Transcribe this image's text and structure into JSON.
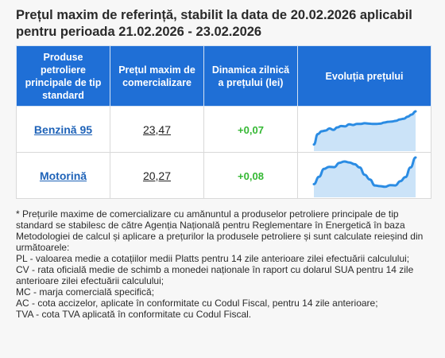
{
  "title": "Prețul maxim de referință, stabilit la data de 20.02.2026 aplicabil pentru perioada 21.02.2026 - 23.02.2026",
  "table": {
    "headers": [
      "Produse petroliere principale de tip standard",
      "Prețul maxim de comercializare",
      "Dinamica zilnică a prețului (lei)",
      "Evoluția prețului"
    ],
    "rows": [
      {
        "product": "Benzină 95",
        "price": "23,47",
        "dynamic": "+0,07",
        "trend": [
          1,
          4,
          4.8,
          5,
          5.6,
          5.2,
          5.9,
          6.3,
          6.2,
          6.8,
          6.6,
          6.9,
          6.9,
          7.1,
          7,
          6.9,
          6.9,
          7,
          7.3,
          7.5,
          7.6,
          7.8,
          8.2,
          8.4,
          9,
          9.6,
          10.5
        ]
      },
      {
        "product": "Motorină",
        "price": "20,27",
        "dynamic": "+0,08",
        "trend": [
          3,
          5.2,
          7.6,
          8.2,
          8.1,
          9.4,
          9.8,
          9.5,
          9,
          8,
          5.8,
          4.4,
          2.6,
          2.4,
          2.2,
          2.7,
          2.6,
          3.9,
          5.1,
          8,
          11
        ]
      }
    ]
  },
  "colors": {
    "header_bg": "#1f6fd6",
    "product_link": "#1f63b8",
    "dynamic_up": "#35b834",
    "spark_line": "#2b8ce3",
    "spark_fill": "#b9d9f5"
  },
  "notes": [
    "* Prețurile maxime de comercializare cu amănuntul a produselor petroliere principale de tip standard se stabilesc de către Agenția Națională pentru Reglementare în Energetică în baza Metodologiei de calcul și aplicare a prețurilor la produsele petroliere și sunt calculate reieșind din următoarele:",
    "PL - valoarea medie a cotațiilor medii Platts pentru 14 zile anterioare zilei efectuării calculului;",
    "CV - rata oficială medie de schimb a monedei naționale în raport cu dolarul SUA pentru 14 zile anterioare zilei efectuării calculului;",
    "MC - marja comercială specifică;",
    "AC - cota accizelor, aplicate în conformitate cu Codul Fiscal, pentru 14 zile anterioare;",
    "TVA - cota TVA aplicată în conformitate cu Codul Fiscal."
  ]
}
